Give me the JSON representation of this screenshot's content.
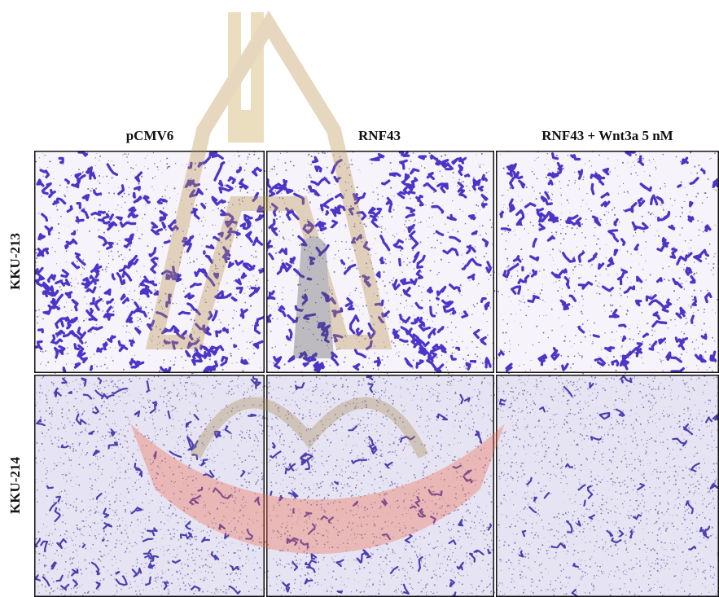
{
  "figure": {
    "columns": [
      "pCMV6",
      "RNF43",
      "RNF43 + Wnt3a 5 nM"
    ],
    "rows": [
      "KKU-213",
      "KKU-214"
    ]
  }
}
